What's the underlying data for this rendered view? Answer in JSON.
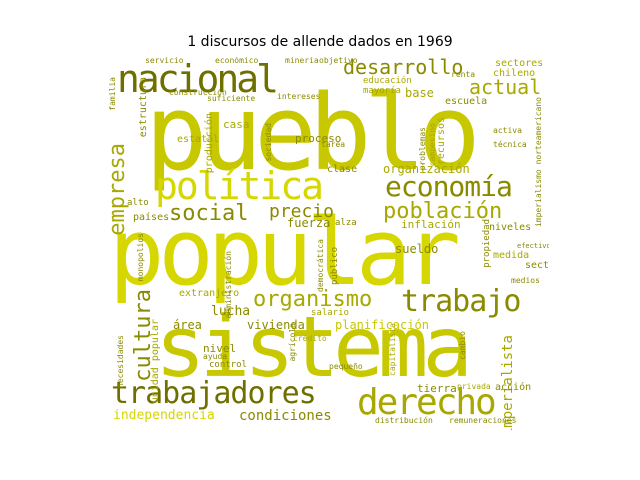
{
  "title": "1 discursos de allende dados en 1969",
  "words": {
    "pueblo": "pueblo",
    "popular": "popular",
    "sistema": "sistema",
    "nacional": "nacional",
    "politica": "política",
    "economia": "economía",
    "trabajadores": "trabajadores",
    "derecho": "derecho",
    "trabajo": "trabajo",
    "organismo": "organismo",
    "desarrollo": "desarrollo",
    "actual": "actual",
    "social": "social",
    "precio": "precio",
    "poblacion": "población",
    "empresa": "empresa",
    "cultura": "cultura",
    "organizacion": "organización",
    "condiciones": "condiciones",
    "independencia": "independencia",
    "imperialista": "imperialista",
    "planificacion": "planificación",
    "sueldo": "sueldo",
    "vivienda": "vivienda",
    "lucha": "lucha",
    "area": "área",
    "nivel": "nivel",
    "tierra": "tierra",
    "produccion": "producción",
    "escuela": "escuela",
    "base": "base",
    "clase": "clase",
    "inflacion": "inflación",
    "proceso": "proceso",
    "fuerza": "fuerza",
    "salario": "salario",
    "sector": "sector",
    "medida": "medida",
    "paises": "países",
    "alto": "alto",
    "casa": "casa",
    "estatal": "estatal",
    "estructura": "estructura",
    "extranjero": "extranjero",
    "medios": "medios",
    "accion": "acción",
    "remuneraciones": "remuneraciones",
    "distribucion": "distribución",
    "privada": "privada",
    "pequeno": "pequeño",
    "sectores": "sectores",
    "chileno": "chileno",
    "educacion": "educación",
    "mayoria": "mayoría",
    "intereses": "intereses",
    "suficiente": "suficiente",
    "economico": "económico",
    "servicio": "servicio",
    "construccion": "construcción",
    "campesino": "campesino",
    "recursos": "recursos",
    "problemas": "problemas",
    "activa": "activa",
    "tecnica": "técnica",
    "niveles": "niveles",
    "propiedad": "propiedad",
    "capitalista": "capitalista",
    "agricola": "agrícola",
    "control": "control",
    "ayuda": "ayuda",
    "credito": "crédito",
    "monopolios": "monopolios",
    "democratica": "democrática",
    "administracion": "administración",
    "unidad_popular": "unidad popular",
    "necesidades": "necesidades",
    "imperialismo_norteamericano": "imperialismo norteamericano",
    "cambio": "cambio",
    "tarea": "tarea",
    "sociedad": "sociedad",
    "objetivo": "objetivo",
    "renta": "renta",
    "familia": "familia",
    "mineria": "minería",
    "efectivo": "efectivo",
    "publico": "público",
    "alza": "alza"
  }
}
